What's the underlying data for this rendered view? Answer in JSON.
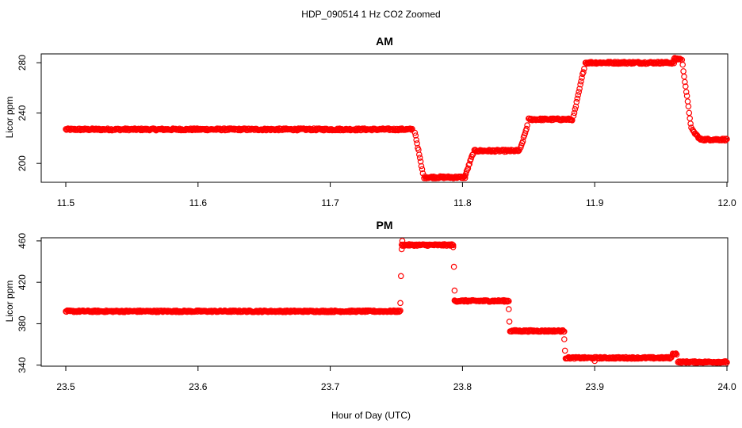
{
  "figure": {
    "title": "HDP_090514  1 Hz CO2 Zoomed",
    "xlabel": "Hour of Day (UTC)"
  },
  "colors": {
    "points": "#ff0000",
    "axes": "#000000",
    "background": "#ffffff"
  },
  "chart_data": [
    {
      "type": "scatter",
      "title": "AM",
      "xlabel": "",
      "ylabel": "Licor ppm",
      "xlim": [
        11.5,
        12.0
      ],
      "ylim": [
        185,
        287
      ],
      "xticks": [
        11.5,
        11.6,
        11.7,
        11.8,
        11.9,
        12.0
      ],
      "xtick_labels": [
        "11.5",
        "11.6",
        "11.7",
        "11.8",
        "11.9",
        "12.0"
      ],
      "yticks": [
        200,
        240,
        280
      ],
      "ytick_labels": [
        "200",
        "240",
        "280"
      ],
      "grid": false,
      "segments": [
        {
          "x0": 11.5,
          "x1": 11.762,
          "y": 227
        },
        {
          "x0": 11.764,
          "x1": 11.77,
          "y0": 225,
          "y1": 192
        },
        {
          "x0": 11.771,
          "x1": 11.802,
          "y": 189
        },
        {
          "x0": 11.802,
          "x1": 11.808,
          "y0": 190,
          "y1": 208
        },
        {
          "x0": 11.809,
          "x1": 11.843,
          "y": 210
        },
        {
          "x0": 11.844,
          "x1": 11.849,
          "y0": 212,
          "y1": 230
        },
        {
          "x0": 11.85,
          "x1": 11.883,
          "y": 235
        },
        {
          "x0": 11.884,
          "x1": 11.892,
          "y0": 237,
          "y1": 276
        },
        {
          "x0": 11.893,
          "x1": 11.96,
          "y": 280
        },
        {
          "x0": 11.96,
          "x1": 11.965,
          "y": 283
        },
        {
          "x0": 11.966,
          "x1": 11.973,
          "y0": 282,
          "y1": 228
        },
        {
          "x0": 11.974,
          "x1": 11.98,
          "y0": 226,
          "y1": 219
        },
        {
          "x0": 11.98,
          "x1": 12.0,
          "y": 219
        }
      ]
    },
    {
      "type": "scatter",
      "title": "PM",
      "xlabel": "",
      "ylabel": "Licor ppm",
      "xlim": [
        23.5,
        24.0
      ],
      "ylim": [
        339,
        463
      ],
      "xticks": [
        23.5,
        23.6,
        23.7,
        23.8,
        23.9,
        24.0
      ],
      "xtick_labels": [
        "23.5",
        "23.6",
        "23.7",
        "23.8",
        "23.9",
        "24.0"
      ],
      "yticks": [
        340,
        380,
        420,
        460
      ],
      "ytick_labels": [
        "340",
        "380",
        "420",
        "460"
      ],
      "grid": false,
      "segments": [
        {
          "x0": 23.5,
          "x1": 23.753,
          "y": 392
        },
        {
          "x0": 23.754,
          "x1": 23.793,
          "y": 456
        },
        {
          "x0": 23.794,
          "x1": 23.835,
          "y": 402
        },
        {
          "x0": 23.836,
          "x1": 23.877,
          "y": 373
        },
        {
          "x0": 23.878,
          "x1": 23.958,
          "y": 347
        },
        {
          "x0": 23.959,
          "x1": 23.962,
          "y": 351
        },
        {
          "x0": 23.963,
          "x1": 24.0,
          "y": 343
        }
      ],
      "points": [
        {
          "x": 23.753,
          "y": 400
        },
        {
          "x": 23.7535,
          "y": 426
        },
        {
          "x": 23.754,
          "y": 452
        },
        {
          "x": 23.7545,
          "y": 460
        },
        {
          "x": 23.793,
          "y": 454
        },
        {
          "x": 23.7935,
          "y": 435
        },
        {
          "x": 23.794,
          "y": 412
        },
        {
          "x": 23.835,
          "y": 394
        },
        {
          "x": 23.8355,
          "y": 382
        },
        {
          "x": 23.877,
          "y": 365
        },
        {
          "x": 23.8775,
          "y": 354
        },
        {
          "x": 23.9,
          "y": 344
        }
      ]
    }
  ]
}
